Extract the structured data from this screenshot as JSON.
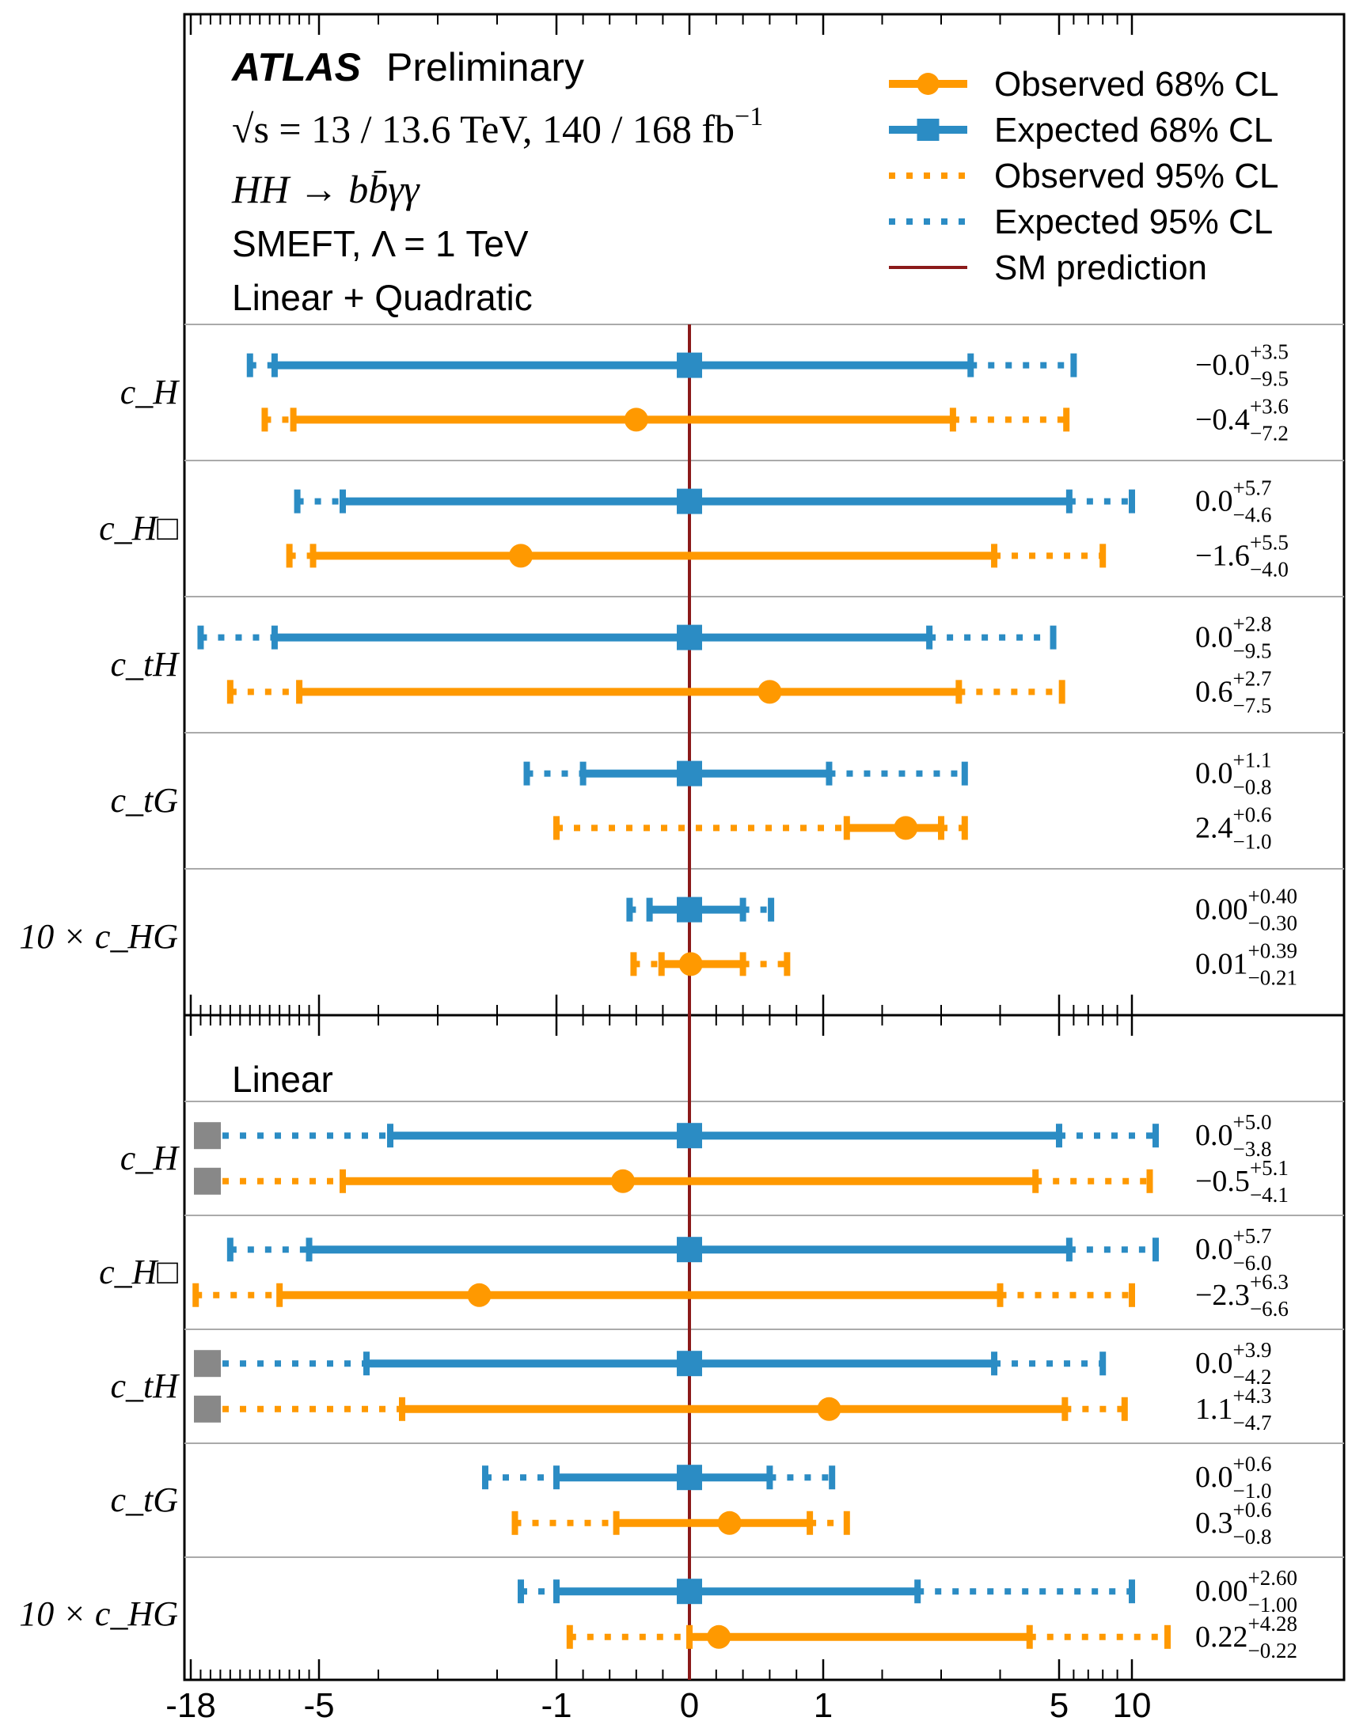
{
  "header": {
    "atlas": "ATLAS",
    "preliminary": "Preliminary",
    "energy_line": "√s = 13 / 13.6 TeV, 140 / 168 fb",
    "energy_sup": "−1",
    "process": "HH → bb̄γγ",
    "smeft": "SMEFT, Λ = 1 TeV",
    "top_panel": "Linear + Quadratic",
    "bottom_panel": "Linear"
  },
  "legend": [
    {
      "label": "Observed 68% CL",
      "style": "obs68"
    },
    {
      "label": "Expected 68% CL",
      "style": "exp68"
    },
    {
      "label": "Observed 95% CL",
      "style": "obs95"
    },
    {
      "label": "Expected 95% CL",
      "style": "exp95"
    },
    {
      "label": "SM prediction",
      "style": "sm"
    }
  ],
  "chart_data": {
    "type": "interval",
    "xaxis": {
      "scale": "symmetric log",
      "tick_labels": [
        "-18",
        "-5",
        "-1",
        "0",
        "1",
        "5",
        "10"
      ],
      "tick_values": [
        -18,
        -5,
        -1,
        0,
        1,
        5,
        10
      ],
      "xlim": [
        -18,
        10
      ]
    },
    "colors": {
      "observed": "#ff9900",
      "expected": "#2b8cc4",
      "sm": "#8b1a1a",
      "truncated": "#888888"
    },
    "panels": [
      {
        "name": "Linear + Quadratic",
        "parameters": [
          {
            "label": "c_H",
            "expected": {
              "central": 0.0,
              "ci68": [
                -9.5,
                3.5
              ],
              "ci95": [
                -12.0,
                6.0
              ],
              "text": {
                "val": "−0.0",
                "up": "+3.5",
                "dn": "−9.5"
              }
            },
            "observed": {
              "central": -0.4,
              "ci68": [
                -7.6,
                3.2
              ],
              "ci95": [
                -10.5,
                5.5
              ],
              "text": {
                "val": "−0.4",
                "up": "+3.6",
                "dn": "−7.2"
              }
            }
          },
          {
            "label": "c_H□",
            "expected": {
              "central": 0.0,
              "ci68": [
                -4.6,
                5.7
              ],
              "ci95": [
                -7.2,
                10.0
              ],
              "text": {
                "val": "0.0",
                "up": "+5.7",
                "dn": "−4.6"
              }
            },
            "observed": {
              "central": -1.6,
              "ci68": [
                -5.6,
                3.9
              ],
              "ci95": [
                -8.0,
                8.0
              ],
              "text": {
                "val": "−1.6",
                "up": "+5.5",
                "dn": "−4.0"
              }
            }
          },
          {
            "label": "c_tH",
            "expected": {
              "central": 0.0,
              "ci68": [
                -9.5,
                2.8
              ],
              "ci95": [
                -17.0,
                4.9
              ],
              "text": {
                "val": "0.0",
                "up": "+2.8",
                "dn": "−9.5"
              }
            },
            "observed": {
              "central": 0.6,
              "ci68": [
                -7.0,
                3.3
              ],
              "ci95": [
                -14.0,
                5.2
              ],
              "text": {
                "val": "0.6",
                "up": "+2.7",
                "dn": "−7.5"
              }
            }
          },
          {
            "label": "c_tG",
            "expected": {
              "central": 0.0,
              "ci68": [
                -0.8,
                1.1
              ],
              "ci95": [
                -1.5,
                3.4
              ],
              "text": {
                "val": "0.0",
                "up": "+1.1",
                "dn": "−0.8"
              }
            },
            "observed": {
              "central": 2.4,
              "ci68": [
                1.4,
                3.0
              ],
              "ci95": [
                -1.0,
                3.4
              ],
              "text": {
                "val": "2.4",
                "up": "+0.6",
                "dn": "−1.0"
              }
            }
          },
          {
            "label": "10 × c_HG",
            "expected": {
              "central": 0.0,
              "ci68": [
                -0.3,
                0.4
              ],
              "ci95": [
                -0.45,
                0.61
              ],
              "text": {
                "val": "0.00",
                "up": "+0.40",
                "dn": "−0.30"
              }
            },
            "observed": {
              "central": 0.01,
              "ci68": [
                -0.21,
                0.4
              ],
              "ci95": [
                -0.42,
                0.73
              ],
              "text": {
                "val": "0.01",
                "up": "+0.39",
                "dn": "−0.21"
              }
            }
          }
        ]
      },
      {
        "name": "Linear",
        "parameters": [
          {
            "label": "c_H",
            "expected": {
              "central": 0.0,
              "ci68": [
                -3.8,
                5.0
              ],
              "ci95": [
                -18,
                12.0
              ],
              "truncated_left": true,
              "text": {
                "val": "0.0",
                "up": "+5.0",
                "dn": "−3.8"
              }
            },
            "observed": {
              "central": -0.5,
              "ci68": [
                -4.6,
                4.6
              ],
              "ci95": [
                -18,
                11.5
              ],
              "truncated_left": true,
              "text": {
                "val": "−0.5",
                "up": "+5.1",
                "dn": "−4.1"
              }
            }
          },
          {
            "label": "c_H□",
            "expected": {
              "central": 0.0,
              "ci68": [
                -6.0,
                5.7
              ],
              "ci95": [
                -14.0,
                12.0
              ],
              "text": {
                "val": "0.0",
                "up": "+5.7",
                "dn": "−6.0"
              }
            },
            "observed": {
              "central": -2.3,
              "ci68": [
                -9.0,
                4.0
              ],
              "ci95": [
                -17.5,
                10.0
              ],
              "text": {
                "val": "−2.3",
                "up": "+6.3",
                "dn": "−6.6"
              }
            }
          },
          {
            "label": "c_tH",
            "expected": {
              "central": 0.0,
              "ci68": [
                -4.2,
                3.9
              ],
              "ci95": [
                -18,
                8.0
              ],
              "truncated_left": true,
              "text": {
                "val": "0.0",
                "up": "+3.9",
                "dn": "−4.2"
              }
            },
            "observed": {
              "central": 1.1,
              "ci68": [
                -3.6,
                5.4
              ],
              "ci95": [
                -18,
                9.5
              ],
              "truncated_left": true,
              "text": {
                "val": "1.1",
                "up": "+4.3",
                "dn": "−4.7"
              }
            }
          },
          {
            "label": "c_tG",
            "expected": {
              "central": 0.0,
              "ci68": [
                -1.0,
                0.6
              ],
              "ci95": [
                -2.2,
                1.15
              ],
              "text": {
                "val": "0.0",
                "up": "+0.6",
                "dn": "−1.0"
              }
            },
            "observed": {
              "central": 0.3,
              "ci68": [
                -0.55,
                0.9
              ],
              "ci95": [
                -1.7,
                1.4
              ],
              "text": {
                "val": "0.3",
                "up": "+0.6",
                "dn": "−0.8"
              }
            }
          },
          {
            "label": "10 × c_HG",
            "expected": {
              "central": 0.0,
              "ci68": [
                -1.0,
                2.6
              ],
              "ci95": [
                -1.6,
                10.0
              ],
              "text": {
                "val": "0.00",
                "up": "+2.60",
                "dn": "−1.00"
              }
            },
            "observed": {
              "central": 0.22,
              "ci68": [
                0.0,
                4.5
              ],
              "ci95": [
                -0.9,
                13.0
              ],
              "text": {
                "val": "0.22",
                "up": "+4.28",
                "dn": "−0.22"
              }
            }
          }
        ]
      }
    ]
  }
}
